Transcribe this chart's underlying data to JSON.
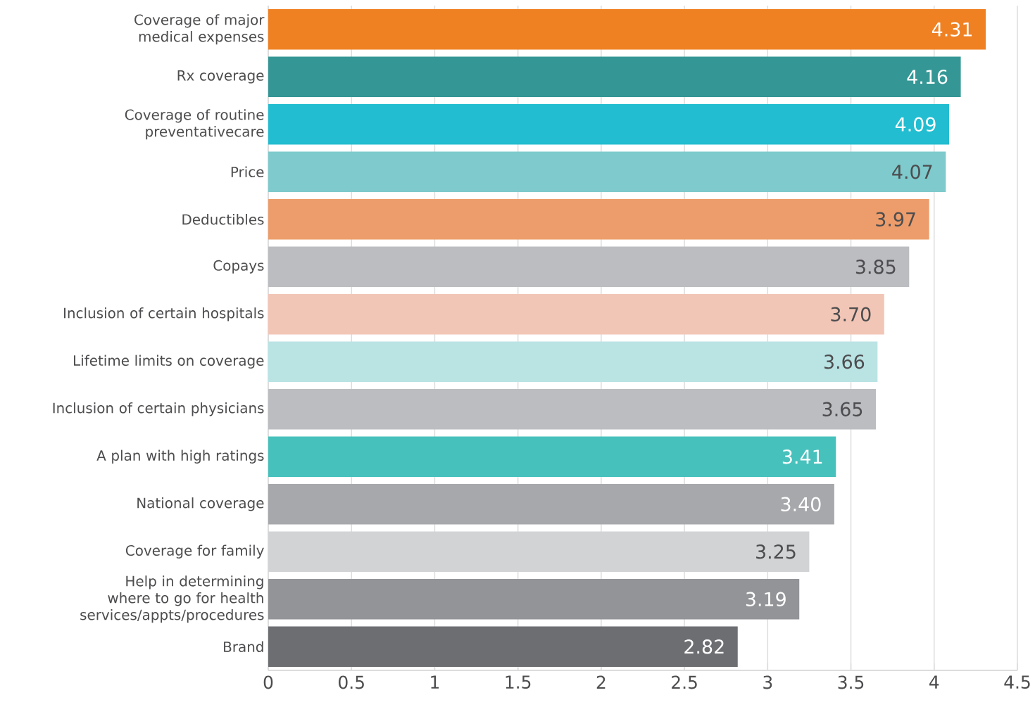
{
  "chart_data": {
    "type": "bar",
    "orientation": "horizontal",
    "categories": [
      "Coverage of major medical expenses",
      "Rx coverage",
      "Coverage of routine preventativecare",
      "Price",
      "Deductibles",
      "Copays",
      "Inclusion of certain hospitals",
      "Lifetime limits on coverage",
      "Inclusion of certain physicians",
      "A plan with high ratings",
      "National coverage",
      "Coverage for family",
      "Help in determining where to go for health services/appts/procedures",
      "Brand"
    ],
    "values": [
      4.31,
      4.16,
      4.09,
      4.07,
      3.97,
      3.85,
      3.7,
      3.66,
      3.65,
      3.41,
      3.4,
      3.25,
      3.19,
      2.82
    ],
    "value_labels": [
      "4.31",
      "4.16",
      "4.09",
      "4.07",
      "3.97",
      "3.85",
      "3.70",
      "3.66",
      "3.65",
      "3.41",
      "3.40",
      "3.25",
      "3.19",
      "2.82"
    ],
    "colors": [
      "#ef8123",
      "#359795",
      "#22bdd0",
      "#7ecacc",
      "#ed9d6b",
      "#bcbdc1",
      "#f2c6b6",
      "#bae3e4",
      "#bcbdc1",
      "#47c1bc",
      "#a7a8ab",
      "#d2d3d5",
      "#939497",
      "#6d6e72"
    ],
    "xlim": [
      0,
      4.5
    ],
    "xticks": [
      0,
      0.5,
      1,
      1.5,
      2,
      2.5,
      3,
      3.5,
      4,
      4.5
    ],
    "grid": "x"
  }
}
